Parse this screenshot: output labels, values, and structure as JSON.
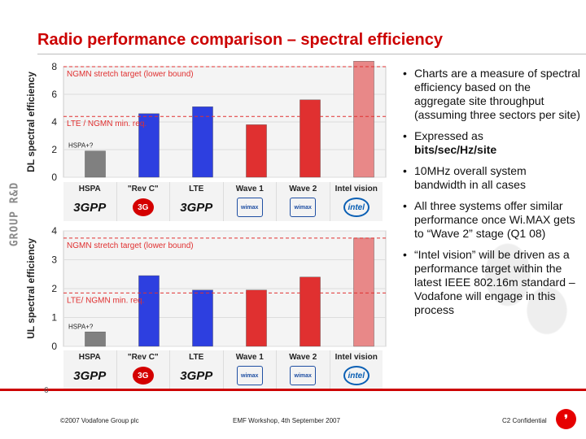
{
  "title": "Radio performance comparison – spectral efficiency",
  "side_brand": "GROUP R&D",
  "page_number": "6",
  "footer": {
    "copyright": "©2007 Vodafone Group plc",
    "event": "EMF Workshop, 4th September 2007",
    "confidentiality": "C2 Confidential"
  },
  "colors": {
    "title": "#cc0000",
    "grey": "#808080",
    "blue": "#2d3fe0",
    "red": "#e03030",
    "pink": "#e88888",
    "ref_line": "#e03030"
  },
  "systems": [
    {
      "name": "HSPA",
      "logo": "3GPP"
    },
    {
      "name": "\"Rev C\"",
      "logo": "3G"
    },
    {
      "name": "LTE",
      "logo": "3GPP"
    },
    {
      "name": "Wave 1",
      "logo": "wimax"
    },
    {
      "name": "Wave 2",
      "logo": "wimax"
    },
    {
      "name": "Intel vision",
      "logo": "intel"
    }
  ],
  "ul_systems": [
    {
      "name": "HSPA",
      "logo": "3GPP"
    },
    {
      "name": "\"Rev C\"",
      "logo": "3G"
    },
    {
      "name": "LTE",
      "logo": "3GPP"
    },
    {
      "name": "Wave 1",
      "logo": "wimax"
    },
    {
      "name": "Wave 2",
      "logo": "wimax"
    },
    {
      "name": "Intel vision",
      "logo": "intel"
    }
  ],
  "chart_data": [
    {
      "type": "bar",
      "ylabel": "DL spectral efficiency",
      "ylim": [
        0,
        8
      ],
      "yticks": [
        "0",
        "2",
        "4",
        "6",
        "8"
      ],
      "categories": [
        "HSPA",
        "\"Rev C\"",
        "LTE",
        "Wave 1",
        "Wave 2",
        "Intel vision"
      ],
      "values": [
        1.9,
        4.6,
        5.1,
        3.8,
        5.6,
        8.4
      ],
      "bar_colors": [
        "grey",
        "blue",
        "blue",
        "red",
        "red",
        "pink"
      ],
      "reference_lines": [
        {
          "label": "NGMN stretch target (lower bound)",
          "value": 8.0
        },
        {
          "label": "LTE / NGMN min. req.",
          "value": 4.4
        }
      ],
      "bar_annotations": [
        {
          "bar": 0,
          "label": "HSPA+?"
        }
      ]
    },
    {
      "type": "bar",
      "ylabel": "UL spectral efficiency",
      "ylim": [
        0,
        4
      ],
      "yticks": [
        "0",
        "1",
        "2",
        "3",
        "4"
      ],
      "categories": [
        "HSPA",
        "\"Rev C\"",
        "LTE",
        "Wave 1",
        "Wave 2",
        "Intel vision"
      ],
      "values": [
        0.5,
        2.45,
        1.95,
        1.95,
        2.4,
        3.75
      ],
      "bar_colors": [
        "grey",
        "blue",
        "blue",
        "red",
        "red",
        "pink"
      ],
      "reference_lines": [
        {
          "label": "NGMN stretch target (lower bound)",
          "value": 3.75
        },
        {
          "label": "LTE/ NGMN min. req.",
          "value": 1.85
        }
      ],
      "bar_annotations": [
        {
          "bar": 0,
          "label": "HSPA+?"
        }
      ]
    }
  ],
  "bullets": [
    {
      "text": "Charts are a measure of spectral efficiency based on the aggregate site throughput (assuming three sectors per site)"
    },
    {
      "text": "Expressed as",
      "bold": "bits/sec/Hz/site"
    },
    {
      "text": "10MHz overall system bandwidth in all cases"
    },
    {
      "text": "All three systems offer similar performance once Wi.MAX gets to “Wave 2” stage (Q1 08)"
    },
    {
      "text": "“Intel vision” will be driven as a performance target within the latest IEEE 802.16m standard – Vodafone will engage in this process"
    }
  ]
}
